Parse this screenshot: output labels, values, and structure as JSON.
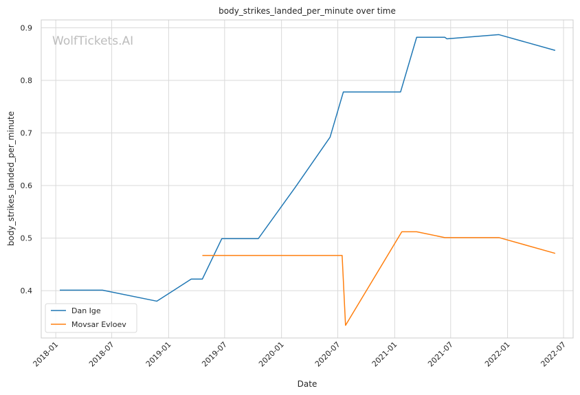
{
  "chart_data": {
    "type": "line",
    "title": "body_strikes_landed_per_minute over time",
    "xlabel": "Date",
    "ylabel": "body_strikes_landed_per_minute",
    "watermark": "WolfTickets.AI",
    "x_range": [
      "2017-11-15",
      "2022-08-01"
    ],
    "ylim": [
      0.31,
      0.915
    ],
    "x_ticks": [
      "2018-01",
      "2018-07",
      "2019-01",
      "2019-07",
      "2020-01",
      "2020-07",
      "2021-01",
      "2021-07",
      "2022-01",
      "2022-07"
    ],
    "y_ticks": [
      0.4,
      0.5,
      0.6,
      0.7,
      0.8,
      0.9
    ],
    "grid": true,
    "legend": "lower-left",
    "series": [
      {
        "name": "Dan Ige",
        "color": "#1f77b4",
        "points": [
          [
            "2018-01-14",
            0.401
          ],
          [
            "2018-06-01",
            0.401
          ],
          [
            "2018-11-24",
            0.38
          ],
          [
            "2019-03-15",
            0.422
          ],
          [
            "2019-04-20",
            0.422
          ],
          [
            "2019-06-22",
            0.499
          ],
          [
            "2019-10-18",
            0.499
          ],
          [
            "2020-02-15",
            0.597
          ],
          [
            "2020-06-06",
            0.692
          ],
          [
            "2020-07-19",
            0.778
          ],
          [
            "2021-01-20",
            0.778
          ],
          [
            "2021-03-13",
            0.882
          ],
          [
            "2021-06-12",
            0.882
          ],
          [
            "2021-06-19",
            0.879
          ],
          [
            "2021-12-04",
            0.887
          ],
          [
            "2022-06-04",
            0.857
          ]
        ]
      },
      {
        "name": "Movsar Evloev",
        "color": "#ff7f0e",
        "points": [
          [
            "2019-04-20",
            0.467
          ],
          [
            "2020-07-15",
            0.467
          ],
          [
            "2020-07-26",
            0.334
          ],
          [
            "2021-01-24",
            0.512
          ],
          [
            "2021-03-13",
            0.512
          ],
          [
            "2021-06-12",
            0.501
          ],
          [
            "2021-12-04",
            0.501
          ],
          [
            "2022-06-04",
            0.471
          ]
        ]
      }
    ]
  }
}
